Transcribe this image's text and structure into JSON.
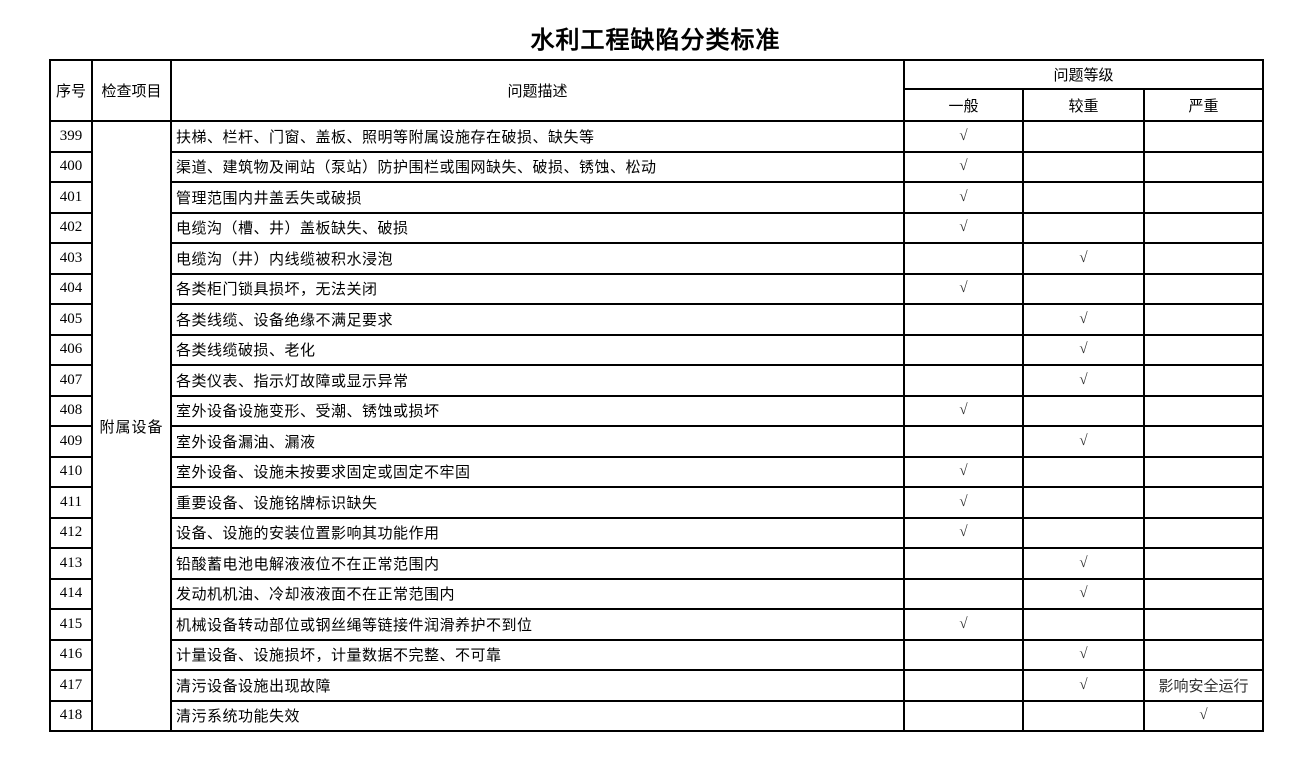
{
  "title": "水利工程缺陷分类标准",
  "table": {
    "headers": {
      "index": "序号",
      "category": "检查项目",
      "description": "问题描述",
      "level_group": "问题等级",
      "levels": [
        "一般",
        "较重",
        "严重"
      ]
    },
    "category_value": "附属设备",
    "rows": [
      {
        "no": "399",
        "desc": "扶梯、栏杆、门窗、盖板、照明等附属设施存在破损、缺失等",
        "general": "√",
        "moderate": "",
        "severe": ""
      },
      {
        "no": "400",
        "desc": "渠道、建筑物及闸站（泵站）防护围栏或围网缺失、破损、锈蚀、松动",
        "general": "√",
        "moderate": "",
        "severe": ""
      },
      {
        "no": "401",
        "desc": "管理范围内井盖丢失或破损",
        "general": "√",
        "moderate": "",
        "severe": ""
      },
      {
        "no": "402",
        "desc": "电缆沟（槽、井）盖板缺失、破损",
        "general": "√",
        "moderate": "",
        "severe": ""
      },
      {
        "no": "403",
        "desc": "电缆沟（井）内线缆被积水浸泡",
        "general": "",
        "moderate": "√",
        "severe": ""
      },
      {
        "no": "404",
        "desc": "各类柜门锁具损坏，无法关闭",
        "general": "√",
        "moderate": "",
        "severe": ""
      },
      {
        "no": "405",
        "desc": "各类线缆、设备绝缘不满足要求",
        "general": "",
        "moderate": "√",
        "severe": ""
      },
      {
        "no": "406",
        "desc": "各类线缆破损、老化",
        "general": "",
        "moderate": "√",
        "severe": ""
      },
      {
        "no": "407",
        "desc": "各类仪表、指示灯故障或显示异常",
        "general": "",
        "moderate": "√",
        "severe": ""
      },
      {
        "no": "408",
        "desc": "室外设备设施变形、受潮、锈蚀或损坏",
        "general": "√",
        "moderate": "",
        "severe": ""
      },
      {
        "no": "409",
        "desc": "室外设备漏油、漏液",
        "general": "",
        "moderate": "√",
        "severe": ""
      },
      {
        "no": "410",
        "desc": "室外设备、设施未按要求固定或固定不牢固",
        "general": "√",
        "moderate": "",
        "severe": ""
      },
      {
        "no": "411",
        "desc": "重要设备、设施铭牌标识缺失",
        "general": "√",
        "moderate": "",
        "severe": ""
      },
      {
        "no": "412",
        "desc": "设备、设施的安装位置影响其功能作用",
        "general": "√",
        "moderate": "",
        "severe": ""
      },
      {
        "no": "413",
        "desc": "铅酸蓄电池电解液液位不在正常范围内",
        "general": "",
        "moderate": "√",
        "severe": ""
      },
      {
        "no": "414",
        "desc": "发动机机油、冷却液液面不在正常范围内",
        "general": "",
        "moderate": "√",
        "severe": ""
      },
      {
        "no": "415",
        "desc": "机械设备转动部位或钢丝绳等链接件润滑养护不到位",
        "general": "√",
        "moderate": "",
        "severe": ""
      },
      {
        "no": "416",
        "desc": "计量设备、设施损坏，计量数据不完整、不可靠",
        "general": "",
        "moderate": "√",
        "severe": ""
      },
      {
        "no": "417",
        "desc": "清污设备设施出现故障",
        "general": "",
        "moderate": "√",
        "severe": "影响安全运行"
      },
      {
        "no": "418",
        "desc": "清污系统功能失效",
        "general": "",
        "moderate": "",
        "severe": "√"
      }
    ]
  },
  "colors": {
    "border": "#000000",
    "text": "#000000",
    "background": "#ffffff"
  }
}
